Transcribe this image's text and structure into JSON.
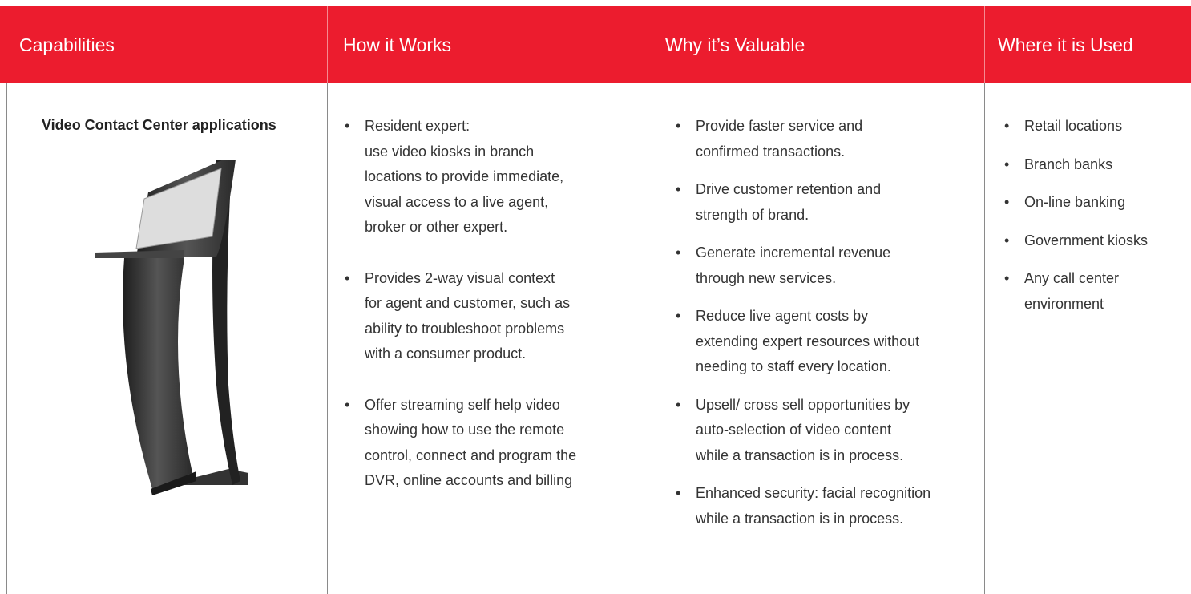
{
  "table": {
    "header": [
      "Capabilities",
      "How it Works",
      "Why it’s Valuable",
      "Where it is Used"
    ],
    "rows": [
      {
        "title": "Video Contact Center applications",
        "columns": [
          [
            [
              "Resident expert:",
              "use video kiosks in branch",
              "locations to provide immediate,",
              "visual access to a live agent,",
              "broker or other expert."
            ],
            [
              "Provides 2-way visual context",
              "for agent and customer, such as",
              "ability to troubleshoot problems",
              "with a consumer product."
            ],
            [
              "Offer streaming self help video",
              "showing how to use the remote",
              "control, connect and program the",
              "DVR, online accounts and billing"
            ]
          ],
          [
            [
              "Provide faster service and",
              "confirmed transactions."
            ],
            [
              "Drive customer retention and",
              "strength of brand."
            ],
            [
              "Generate incremental revenue",
              "through new services."
            ],
            [
              "Reduce live agent costs by",
              "extending expert resources without",
              "needing to staff every location."
            ],
            [
              "Upsell/ cross sell opportunities by",
              "auto-selection of video content",
              "while a transaction is in process."
            ],
            [
              "Enhanced security: facial recognition",
              "while a transaction is in process."
            ]
          ],
          [
            [
              "Retail locations"
            ],
            [
              "Branch banks"
            ],
            [
              "On-line banking"
            ],
            [
              "Government kiosks"
            ],
            [
              "Any call center",
              "environment"
            ]
          ]
        ]
      }
    ]
  }
}
